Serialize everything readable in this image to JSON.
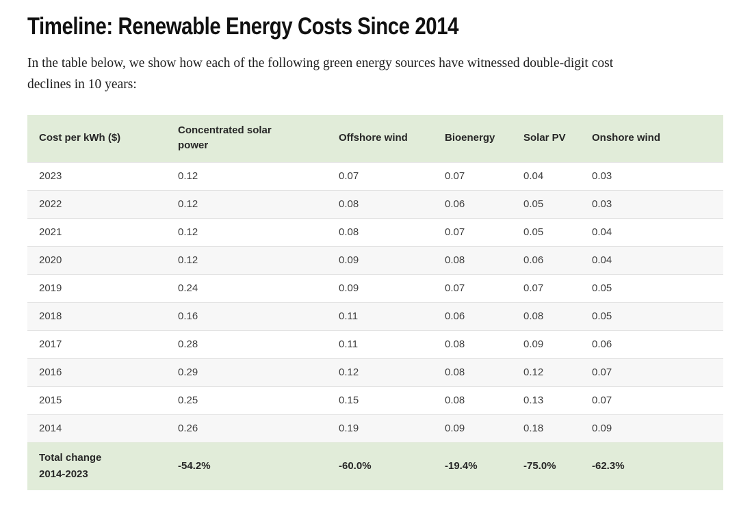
{
  "page": {
    "title": "Timeline: Renewable Energy Costs Since 2014",
    "intro": "In the table below, we show how each of the following green energy sources have witnessed double-digit cost declines in 10 years:"
  },
  "colors": {
    "header_row_bg": "#e1ecd9",
    "total_row_bg": "#e1ecd9",
    "alt_row_bg": "#f7f7f7",
    "row_border": "#e3e3e3",
    "heading_text": "#111111",
    "cell_text": "#3f3f3f"
  },
  "chart_data": {
    "type": "table",
    "title": "Timeline: Renewable Energy Costs Since 2014",
    "unit": "Cost per kWh ($)",
    "columns": [
      "Cost per kWh ($)",
      "Concentrated solar power",
      "Offshore wind",
      "Bioenergy",
      "Solar PV",
      "Onshore wind"
    ],
    "rows": [
      {
        "label": "2023",
        "values": [
          "0.12",
          "0.07",
          "0.07",
          "0.04",
          "0.03"
        ]
      },
      {
        "label": "2022",
        "values": [
          "0.12",
          "0.08",
          "0.06",
          "0.05",
          "0.03"
        ]
      },
      {
        "label": "2021",
        "values": [
          "0.12",
          "0.08",
          "0.07",
          "0.05",
          "0.04"
        ]
      },
      {
        "label": "2020",
        "values": [
          "0.12",
          "0.09",
          "0.08",
          "0.06",
          "0.04"
        ]
      },
      {
        "label": "2019",
        "values": [
          "0.24",
          "0.09",
          "0.07",
          "0.07",
          "0.05"
        ]
      },
      {
        "label": "2018",
        "values": [
          "0.16",
          "0.11",
          "0.06",
          "0.08",
          "0.05"
        ]
      },
      {
        "label": "2017",
        "values": [
          "0.28",
          "0.11",
          "0.08",
          "0.09",
          "0.06"
        ]
      },
      {
        "label": "2016",
        "values": [
          "0.29",
          "0.12",
          "0.08",
          "0.12",
          "0.07"
        ]
      },
      {
        "label": "2015",
        "values": [
          "0.25",
          "0.15",
          "0.08",
          "0.13",
          "0.07"
        ]
      },
      {
        "label": "2014",
        "values": [
          "0.26",
          "0.19",
          "0.09",
          "0.18",
          "0.09"
        ]
      }
    ],
    "total_row": {
      "label": "Total change 2014-2023",
      "values": [
        "-54.2%",
        "-60.0%",
        "-19.4%",
        "-75.0%",
        "-62.3%"
      ]
    }
  }
}
